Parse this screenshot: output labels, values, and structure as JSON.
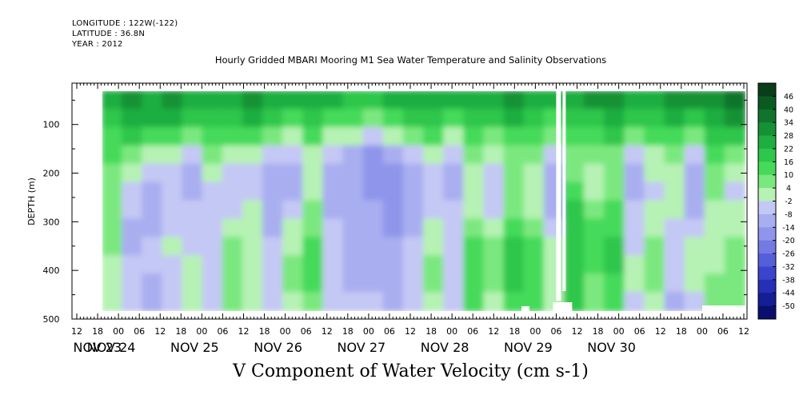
{
  "header": {
    "longitude": "LONGITUDE : 122W(-122)",
    "latitude": "LATITUDE : 36.8N",
    "year": "YEAR : 2012"
  },
  "chart_data": {
    "type": "heatmap",
    "title": "Hourly Gridded MBARI Mooring M1 Sea Water Temperature and Salinity Observations",
    "xlabel": "V Component of Water Velocity (cm s-1)",
    "ylabel": "DEPTH (m)",
    "ylim": [
      500,
      15
    ],
    "yticks": [
      100,
      200,
      300,
      400,
      500
    ],
    "x_hour_ticks": [
      "12",
      "18",
      "00",
      "06",
      "12",
      "18",
      "00",
      "06",
      "12",
      "18",
      "00",
      "06",
      "12",
      "18",
      "00",
      "06",
      "12",
      "18",
      "00",
      "06",
      "12",
      "18",
      "00",
      "06",
      "12",
      "18",
      "00",
      "06",
      "12",
      "18",
      "00",
      "06",
      "12"
    ],
    "x_day_labels": [
      "NOV 23",
      "NOV 24",
      "NOV 25",
      "NOV 26",
      "NOV 27",
      "NOV 28",
      "NOV 29",
      "NOV 30"
    ],
    "colorbar_labels": [
      "46",
      "40",
      "34",
      "28",
      "22",
      "16",
      "10",
      "4",
      "-2",
      "-8",
      "-14",
      "-20",
      "-26",
      "-32",
      "-38",
      "-44",
      "-50"
    ],
    "colorbar_colors": [
      "#0a3d1a",
      "#0b5a22",
      "#10742c",
      "#169236",
      "#1fae40",
      "#2fc64c",
      "#45da5a",
      "#7ae87e",
      "#b6f2b4",
      "#c4c8f4",
      "#a9aef0",
      "#8f95ea",
      "#737ae2",
      "#565fda",
      "#3a44cc",
      "#2530b4",
      "#161e96",
      "#0a0f6e"
    ],
    "series": [
      {
        "values": [
          [
            22,
            18,
            14,
            10,
            8,
            6,
            6,
            4,
            4,
            2,
            2,
            0
          ],
          [
            28,
            24,
            16,
            6,
            -2,
            -6,
            -8,
            -10,
            -10,
            -8,
            -8,
            -6
          ],
          [
            26,
            22,
            12,
            -2,
            -8,
            -12,
            -12,
            -10,
            -8,
            -8,
            -10,
            -10
          ],
          [
            30,
            26,
            14,
            2,
            -6,
            -8,
            -6,
            -4,
            -2,
            -4,
            -6,
            -6
          ],
          [
            22,
            16,
            6,
            -4,
            -10,
            -10,
            -8,
            -6,
            -4,
            -2,
            -2,
            0
          ],
          [
            24,
            18,
            10,
            4,
            0,
            -4,
            -6,
            -8,
            -8,
            -6,
            -6,
            -4
          ],
          [
            26,
            20,
            10,
            -2,
            -8,
            -8,
            -4,
            2,
            6,
            8,
            6,
            4
          ],
          [
            28,
            22,
            12,
            0,
            -6,
            -4,
            -2,
            0,
            2,
            0,
            -2,
            -2
          ],
          [
            24,
            16,
            4,
            -6,
            -12,
            -14,
            -12,
            -10,
            -8,
            -6,
            -6,
            -4
          ],
          [
            22,
            12,
            0,
            -8,
            -12,
            -10,
            -6,
            -2,
            2,
            4,
            4,
            2
          ],
          [
            26,
            20,
            10,
            2,
            -2,
            0,
            4,
            8,
            10,
            12,
            10,
            8
          ],
          [
            22,
            14,
            2,
            -8,
            -12,
            -12,
            -10,
            -8,
            -6,
            -6,
            -8,
            -8
          ],
          [
            20,
            10,
            -2,
            -10,
            -14,
            -12,
            -10,
            -10,
            -12,
            -12,
            -10,
            -8
          ],
          [
            18,
            8,
            -6,
            -16,
            -20,
            -18,
            -14,
            -12,
            -12,
            -10,
            -10,
            -8
          ],
          [
            22,
            12,
            -2,
            -12,
            -18,
            -20,
            -18,
            -16,
            -14,
            -12,
            -12,
            -10
          ],
          [
            24,
            16,
            4,
            -6,
            -12,
            -14,
            -12,
            -10,
            -8,
            -6,
            -6,
            -6
          ],
          [
            26,
            20,
            10,
            2,
            -4,
            -6,
            -4,
            0,
            2,
            4,
            4,
            2
          ],
          [
            22,
            14,
            2,
            -6,
            -10,
            -10,
            -8,
            -6,
            -6,
            -8,
            -8,
            -6
          ],
          [
            26,
            20,
            12,
            6,
            2,
            0,
            2,
            6,
            10,
            12,
            12,
            10
          ],
          [
            24,
            16,
            6,
            -2,
            -6,
            -6,
            -4,
            0,
            4,
            6,
            4,
            2
          ],
          [
            28,
            22,
            14,
            8,
            4,
            4,
            8,
            12,
            16,
            18,
            16,
            14
          ],
          [
            26,
            20,
            12,
            4,
            0,
            -2,
            2,
            8,
            12,
            14,
            12,
            10
          ],
          [
            22,
            14,
            4,
            -6,
            -10,
            -12,
            -10,
            -6,
            -2,
            0,
            0,
            -2
          ],
          [
            26,
            18,
            10,
            6,
            8,
            12,
            16,
            18,
            20,
            20,
            18,
            16
          ],
          [
            28,
            20,
            12,
            4,
            0,
            2,
            6,
            10,
            12,
            10,
            8,
            6
          ],
          [
            30,
            24,
            16,
            8,
            4,
            6,
            10,
            14,
            16,
            16,
            14,
            12
          ],
          [
            24,
            16,
            4,
            -6,
            -10,
            -10,
            -8,
            -6,
            -4,
            -2,
            -2,
            -4
          ],
          [
            26,
            20,
            10,
            2,
            -2,
            -4,
            -2,
            2,
            4,
            6,
            4,
            2
          ],
          [
            30,
            24,
            14,
            6,
            2,
            0,
            -2,
            -4,
            -6,
            -8,
            -8,
            -10
          ],
          [
            28,
            20,
            8,
            -4,
            -10,
            -12,
            -10,
            -6,
            -2,
            0,
            -2,
            -4
          ],
          [
            32,
            26,
            18,
            10,
            6,
            4,
            2,
            0,
            0,
            2,
            4,
            6
          ],
          [
            34,
            28,
            18,
            6,
            -2,
            -4,
            -2,
            2,
            6,
            8,
            8,
            6
          ]
        ]
      }
    ],
    "missing_data": "white gaps near NOV 29 06"
  }
}
